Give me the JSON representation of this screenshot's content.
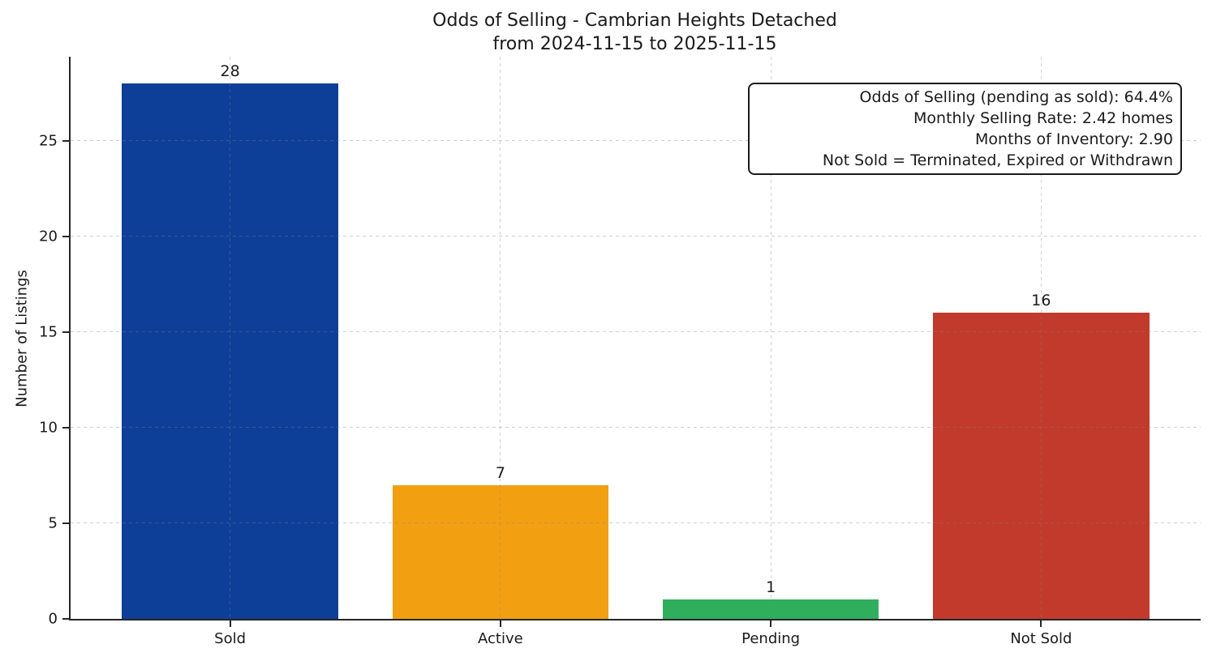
{
  "chart_data": {
    "type": "bar",
    "title": "Odds of Selling - Cambrian Heights Detached",
    "subtitle": "from 2024-11-15 to 2025-11-15",
    "categories": [
      "Sold",
      "Active",
      "Pending",
      "Not Sold"
    ],
    "values": [
      28,
      7,
      1,
      16
    ],
    "bar_colors": [
      "#0e3f98",
      "#f2a012",
      "#2fae5e",
      "#c23a2b"
    ],
    "xlabel": "",
    "ylabel": "Number of Listings",
    "ylim": [
      0,
      29.4
    ],
    "yticks": [
      0,
      5,
      10,
      15,
      20,
      25
    ],
    "grid": true,
    "grid_style": "dashed",
    "legend_position": "none",
    "axis_color": "#262626",
    "annotation_lines": [
      "Odds of Selling (pending as sold): 64.4%",
      "Monthly Selling Rate: 2.42 homes",
      "Months of Inventory: 2.90",
      "Not Sold = Terminated, Expired or Withdrawn"
    ]
  }
}
